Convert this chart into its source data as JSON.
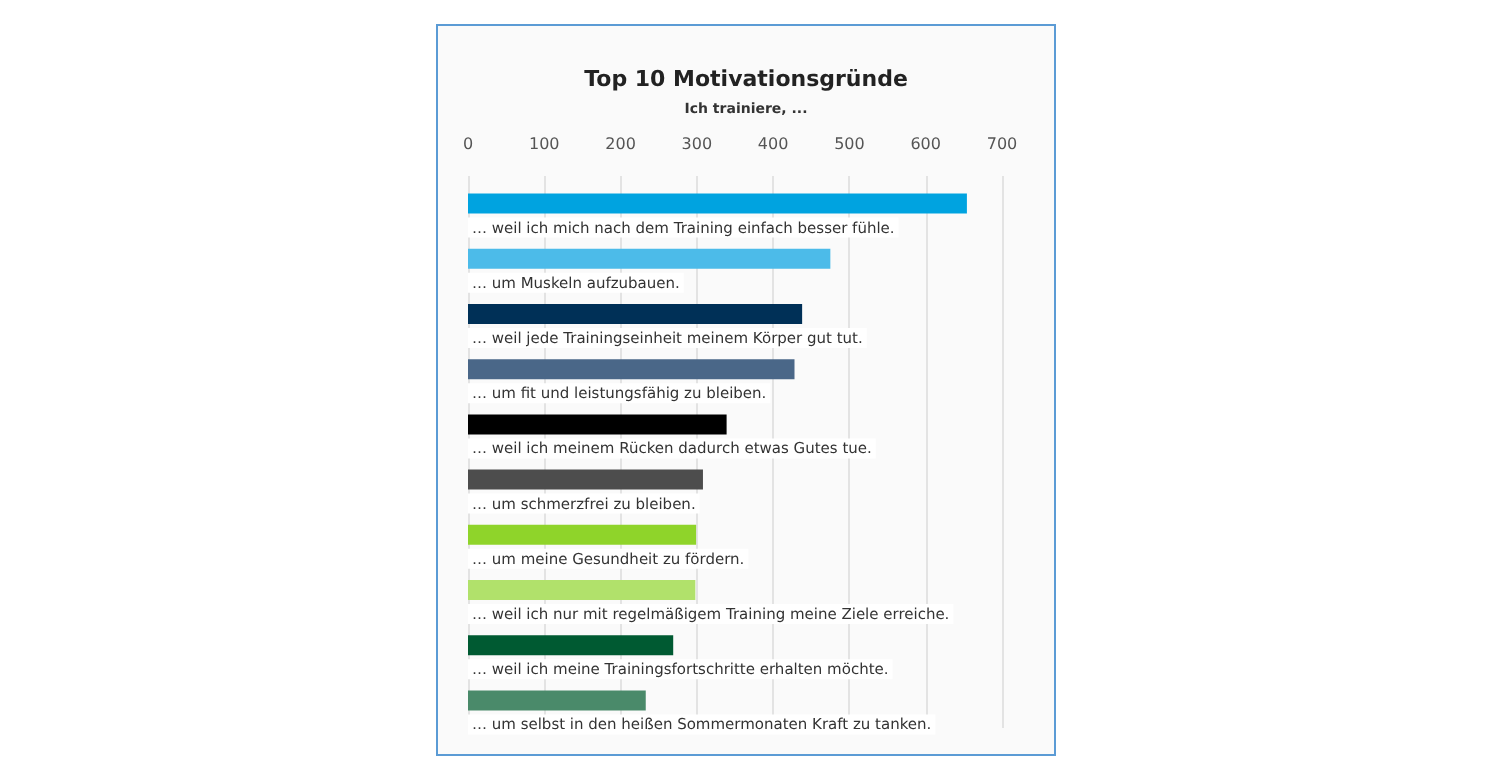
{
  "chart_data": {
    "type": "bar",
    "orientation": "horizontal",
    "title": "Top 10 Motivationsgründe",
    "subtitle": "Ich trainiere, ...",
    "categories": [
      "… weil ich mich nach dem Training einfach besser fühle.",
      "… um Muskeln aufzubauen.",
      "… weil jede Trainingseinheit meinem Körper gut tut.",
      "… um fit und leistungsfähig zu bleiben.",
      "… weil ich meinem Rücken dadurch etwas Gutes tue.",
      "… um schmerzfrei zu bleiben.",
      "… um meine Gesundheit zu fördern.",
      "… weil ich nur mit regelmäßigem Training meine Ziele erreiche.",
      "… weil ich meine Trainingsfortschritte erhalten möchte.",
      "… um selbst in den heißen Sommermonaten Kraft zu tanken."
    ],
    "values": [
      654,
      475,
      438,
      428,
      339,
      308,
      299,
      298,
      269,
      233
    ],
    "colors": [
      "#00a3e0",
      "#4cbbe9",
      "#003057",
      "#4a6788",
      "#000000",
      "#4d4d4d",
      "#8fd42a",
      "#b1e16b",
      "#005a32",
      "#4a8a6a"
    ],
    "xlim": [
      0,
      700
    ],
    "xticks": [
      0,
      100,
      200,
      300,
      400,
      500,
      600,
      700
    ],
    "grid": "x"
  }
}
